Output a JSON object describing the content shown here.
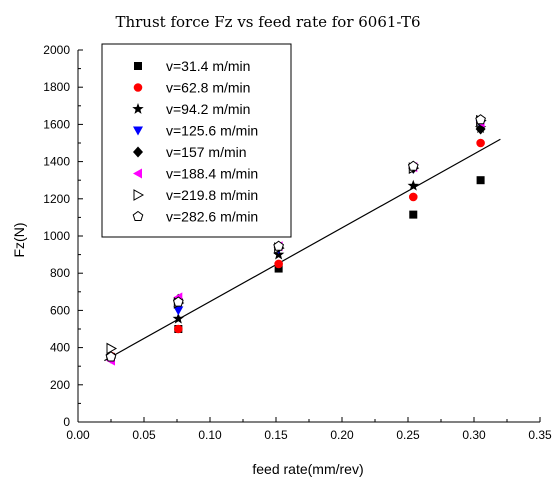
{
  "chart_data": {
    "type": "scatter",
    "title": "Thrust force Fz vs feed rate for 6061-T6",
    "xlabel": "feed rate(mm/rev)",
    "ylabel": "Fz(N)",
    "xlim": [
      0.0,
      0.35
    ],
    "ylim": [
      0,
      2000
    ],
    "xticks": [
      "0.00",
      "0.05",
      "0.10",
      "0.15",
      "0.20",
      "0.25",
      "0.30",
      "0.35"
    ],
    "yticks": [
      "0",
      "200",
      "400",
      "600",
      "800",
      "1000",
      "1200",
      "1400",
      "1600",
      "1800",
      "2000"
    ],
    "grid": false,
    "legend_position": "top-left",
    "series": [
      {
        "name": "v=31.4 m/min",
        "marker": "square",
        "color": "#000000",
        "x": [
          0.025,
          0.076,
          0.152,
          0.254,
          0.305
        ],
        "y": [
          350,
          500,
          825,
          1115,
          1300
        ]
      },
      {
        "name": "v=62.8 m/min",
        "marker": "circle",
        "color": "#ff0000",
        "x": [
          0.025,
          0.076,
          0.152,
          0.254,
          0.305
        ],
        "y": [
          355,
          500,
          850,
          1210,
          1500
        ]
      },
      {
        "name": "v=94.2 m/min",
        "marker": "star",
        "color": "#000000",
        "x": [
          0.025,
          0.076,
          0.152,
          0.254,
          0.305
        ],
        "y": [
          355,
          555,
          900,
          1270,
          1580
        ]
      },
      {
        "name": "v=125.6 m/min",
        "marker": "triangle-down",
        "color": "#0000ff",
        "x": [
          0.025,
          0.076,
          0.152,
          0.254,
          0.305
        ],
        "y": [
          340,
          600,
          930,
          1360,
          1600
        ]
      },
      {
        "name": "v=157 m/min",
        "marker": "diamond",
        "color": "#000000",
        "x": [
          0.025,
          0.076,
          0.152,
          0.254,
          0.305
        ],
        "y": [
          345,
          660,
          940,
          1365,
          1575
        ]
      },
      {
        "name": "v=188.4 m/min",
        "marker": "triangle-left",
        "color": "#ff00ff",
        "x": [
          0.025,
          0.076,
          0.152,
          0.254,
          0.305
        ],
        "y": [
          330,
          670,
          945,
          1370,
          1610
        ]
      },
      {
        "name": "v=219.8 m/min",
        "marker": "triangle-right-open",
        "color": "#000000",
        "x": [
          0.025,
          0.076,
          0.152,
          0.254,
          0.305
        ],
        "y": [
          395,
          640,
          935,
          1365,
          1620
        ]
      },
      {
        "name": "v=282.6 m/min",
        "marker": "pentagon-open",
        "color": "#000000",
        "x": [
          0.025,
          0.076,
          0.152,
          0.254,
          0.305
        ],
        "y": [
          350,
          645,
          945,
          1375,
          1625
        ]
      }
    ],
    "fit_line": {
      "x": [
        0.02,
        0.32
      ],
      "y": [
        330,
        1520
      ]
    }
  }
}
